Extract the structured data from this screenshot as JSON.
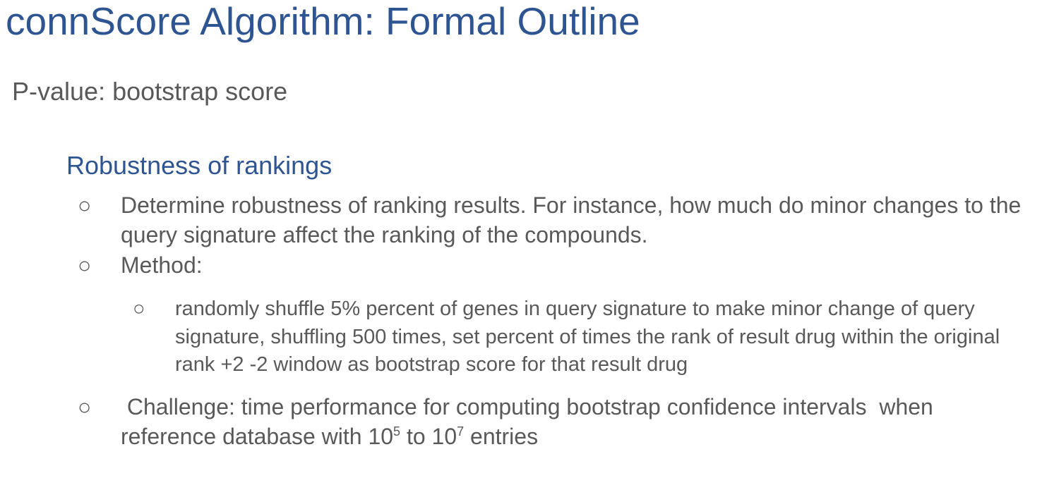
{
  "slide": {
    "title": "connScore Algorithm: Formal Outline",
    "subtitle": "P-value: bootstrap score",
    "section_heading": "Robustness of rankings",
    "bullet_glyph": "○",
    "bullets": [
      {
        "text": "Determine robustness of ranking results. For instance, how much do minor changes to the query signature affect the ranking of the compounds."
      },
      {
        "text": "Method:"
      }
    ],
    "sub_bullets": [
      {
        "text": "randomly shuffle 5% percent of genes in query signature to make minor change of query signature, shuffling 500 times, set percent of times the rank of result drug within the original rank +2 -2 window as bootstrap score for that result drug"
      }
    ],
    "challenge": {
      "prefix": " Challenge: time performance for computing bootstrap confidence intervals  when reference database with 10",
      "exp1": "5",
      "middle": " to 10",
      "exp2": "7",
      "suffix": " entries"
    }
  }
}
